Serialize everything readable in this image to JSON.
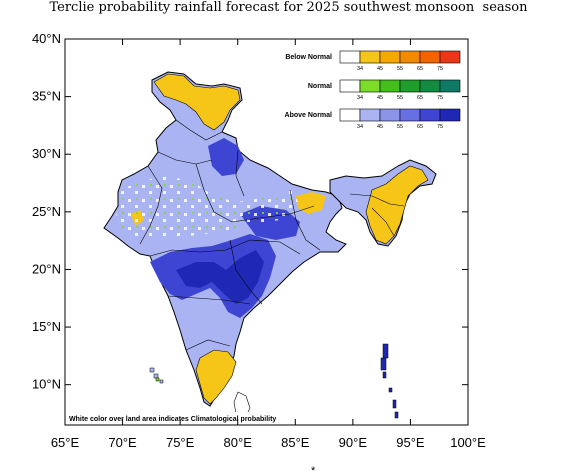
{
  "title": "Terclie probability rainfall forecast for 2025 southwest monsoon  season",
  "map": {
    "lon_range": [
      65,
      100
    ],
    "lat_range": [
      6.5,
      40
    ],
    "x_ticks": [
      "65°E",
      "70°E",
      "75°E",
      "80°E",
      "85°E",
      "90°E",
      "95°E",
      "100°E"
    ],
    "y_ticks": [
      "10°N",
      "15°N",
      "20°N",
      "25°N",
      "30°N",
      "35°N",
      "40°N"
    ]
  },
  "legend": [
    {
      "name": "Below Normal",
      "thresholds": [
        "34",
        "45",
        "55",
        "65",
        "75"
      ],
      "colors": [
        "#ffffff",
        "#f5c518",
        "#f5a800",
        "#f08a00",
        "#f26400",
        "#e83818"
      ]
    },
    {
      "name": "Normal",
      "thresholds": [
        "34",
        "45",
        "55",
        "65",
        "75"
      ],
      "colors": [
        "#ffffff",
        "#7ddb2a",
        "#43be1d",
        "#1e9e2a",
        "#128a40",
        "#0e7a66"
      ]
    },
    {
      "name": "Above Normal",
      "thresholds": [
        "34",
        "45",
        "55",
        "65",
        "75"
      ],
      "colors": [
        "#ffffff",
        "#aab4f2",
        "#8a95ea",
        "#6670e2",
        "#3e45d2",
        "#1f28b4"
      ]
    }
  ],
  "note": "White color over land area indicates Climatological probability",
  "footer_mark": "*",
  "colors": {
    "above_light": "#aab4f2",
    "above_dark": "#1f28b4",
    "below": "#f5c518"
  }
}
